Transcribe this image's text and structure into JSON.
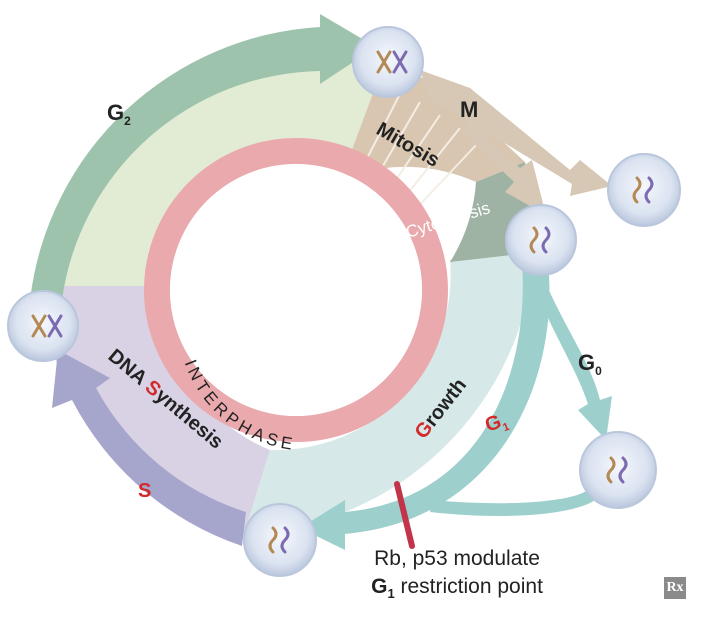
{
  "phases": {
    "g2": {
      "letter": "G",
      "sub": "2"
    },
    "m": "M",
    "mitosis": "Mitosis",
    "cytokinesis": "Cytokinesis",
    "g0": {
      "letter": "G",
      "sub": "0"
    },
    "g1": {
      "letter": "G",
      "sub": "1"
    },
    "s": "S",
    "growth": {
      "first": "G",
      "rest": "rowth"
    },
    "dna_synthesis": {
      "pre": "DNA ",
      "s": "S",
      "post": "ynthesis"
    },
    "interphase": "INTERPHASE"
  },
  "restriction": {
    "line1": "Rb, p53 modulate",
    "line2_g": "G",
    "line2_sub": "1",
    "line2_rest": " restriction point"
  },
  "logo": "Rx",
  "colors": {
    "g2_arrow": "#9ec3ad",
    "g2_fill": "#e2ecd4",
    "m_arrow": "#d6c8b4",
    "mitosis_fill": "#d8c6b0",
    "cytokinesis_fill": "#9fb3a5",
    "g1_arrow": "#9dd0cd",
    "g1_fill": "#d6e9e8",
    "s_arrow": "#a6a6cd",
    "s_fill": "#d8d2e4",
    "interphase_ring": "#eaa9ad",
    "red_label": "#d12b2b",
    "restriction_mark": "#c1344a",
    "cell_fill": "#d9e1f0",
    "chrom_brown": "#b38a55",
    "chrom_purple": "#7c6bb0"
  }
}
